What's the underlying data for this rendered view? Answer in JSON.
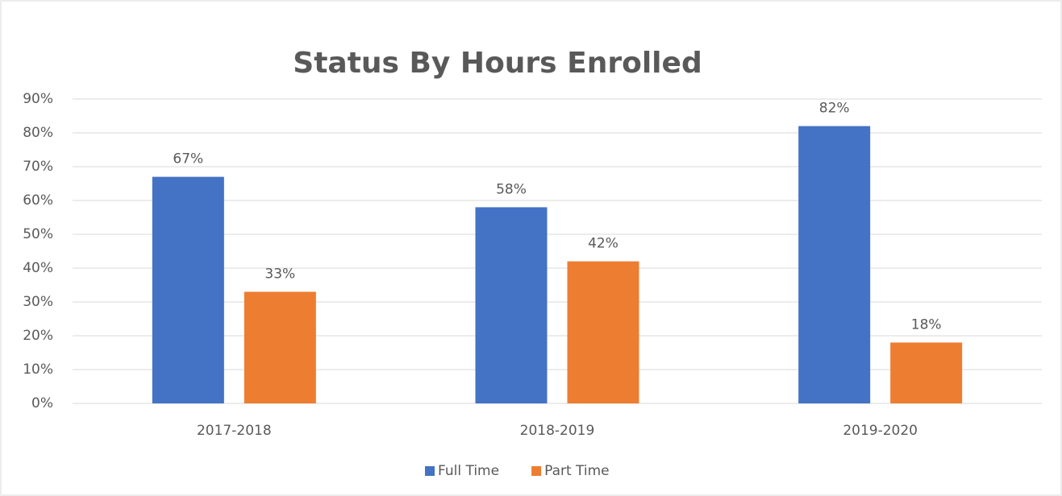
{
  "chart_data": {
    "type": "bar",
    "title": "Status By Hours Enrolled",
    "categories": [
      "2017-2018",
      "2018-2019",
      "2019-2020"
    ],
    "series": [
      {
        "name": "Full Time",
        "color": "#4472c4",
        "values": [
          67,
          58,
          82
        ],
        "value_labels": [
          "67%",
          "58%",
          "82%"
        ]
      },
      {
        "name": "Part Time",
        "color": "#ed7d31",
        "values": [
          33,
          42,
          18
        ],
        "value_labels": [
          "33%",
          "42%",
          "18%"
        ]
      }
    ],
    "ylim": [
      0,
      90
    ],
    "yticks": [
      {
        "value": 0,
        "label": "0%"
      },
      {
        "value": 10,
        "label": "10%"
      },
      {
        "value": 20,
        "label": "20%"
      },
      {
        "value": 30,
        "label": "30%"
      },
      {
        "value": 40,
        "label": "40%"
      },
      {
        "value": 50,
        "label": "50%"
      },
      {
        "value": 60,
        "label": "60%"
      },
      {
        "value": 70,
        "label": "70%"
      },
      {
        "value": 80,
        "label": "80%"
      },
      {
        "value": 90,
        "label": "90%"
      }
    ],
    "grid": true,
    "legend": "bottom"
  }
}
